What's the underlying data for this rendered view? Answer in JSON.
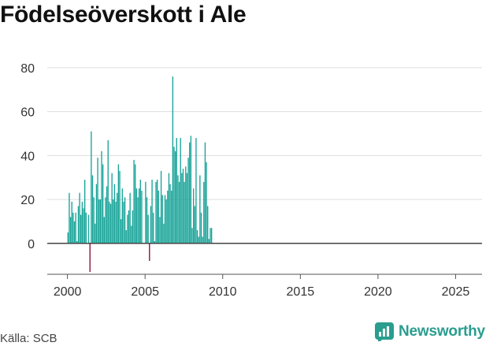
{
  "chart_data": {
    "type": "bar",
    "title": "Födelseöverskott i Ale",
    "xlabel": "",
    "ylabel": "",
    "ylim": [
      -13,
      85
    ],
    "xlim": [
      1998.7,
      2026.6
    ],
    "yticks": [
      0,
      20,
      40,
      60,
      80
    ],
    "xticks": [
      2000,
      2005,
      2010,
      2015,
      2020,
      2025
    ],
    "grid": true,
    "colors": {
      "positive": "#17a398",
      "negative": "#8b0a3c",
      "grid": "#dddddd",
      "axis": "#555555"
    },
    "period": "monthly",
    "start": "2000-01",
    "values": [
      5,
      23,
      12,
      19,
      14,
      10,
      14,
      1,
      17,
      23,
      13,
      19,
      16,
      29,
      14,
      0,
      13,
      -13,
      51,
      31,
      21,
      9,
      27,
      39,
      20,
      20,
      42,
      36,
      12,
      21,
      26,
      47,
      19,
      18,
      32,
      20,
      27,
      19,
      23,
      36,
      33,
      11,
      25,
      19,
      21,
      6,
      13,
      15,
      23,
      8,
      15,
      38,
      36,
      25,
      21,
      25,
      29,
      24,
      0,
      0,
      28,
      21,
      13,
      -8,
      17,
      29,
      14,
      1,
      28,
      29,
      24,
      12,
      33,
      22,
      9,
      22,
      20,
      24,
      32,
      27,
      24,
      76,
      44,
      42,
      48,
      31,
      28,
      48,
      32,
      34,
      28,
      35,
      32,
      39,
      46,
      49,
      7,
      25,
      17,
      48,
      6,
      3,
      31,
      14,
      3,
      28,
      46,
      37,
      17,
      2,
      7,
      7
    ]
  },
  "source": "Källa: SCB",
  "brand": {
    "name": "Newsworthy",
    "icon": "newsworthy-logo-icon",
    "color": "#2a9d8f"
  }
}
